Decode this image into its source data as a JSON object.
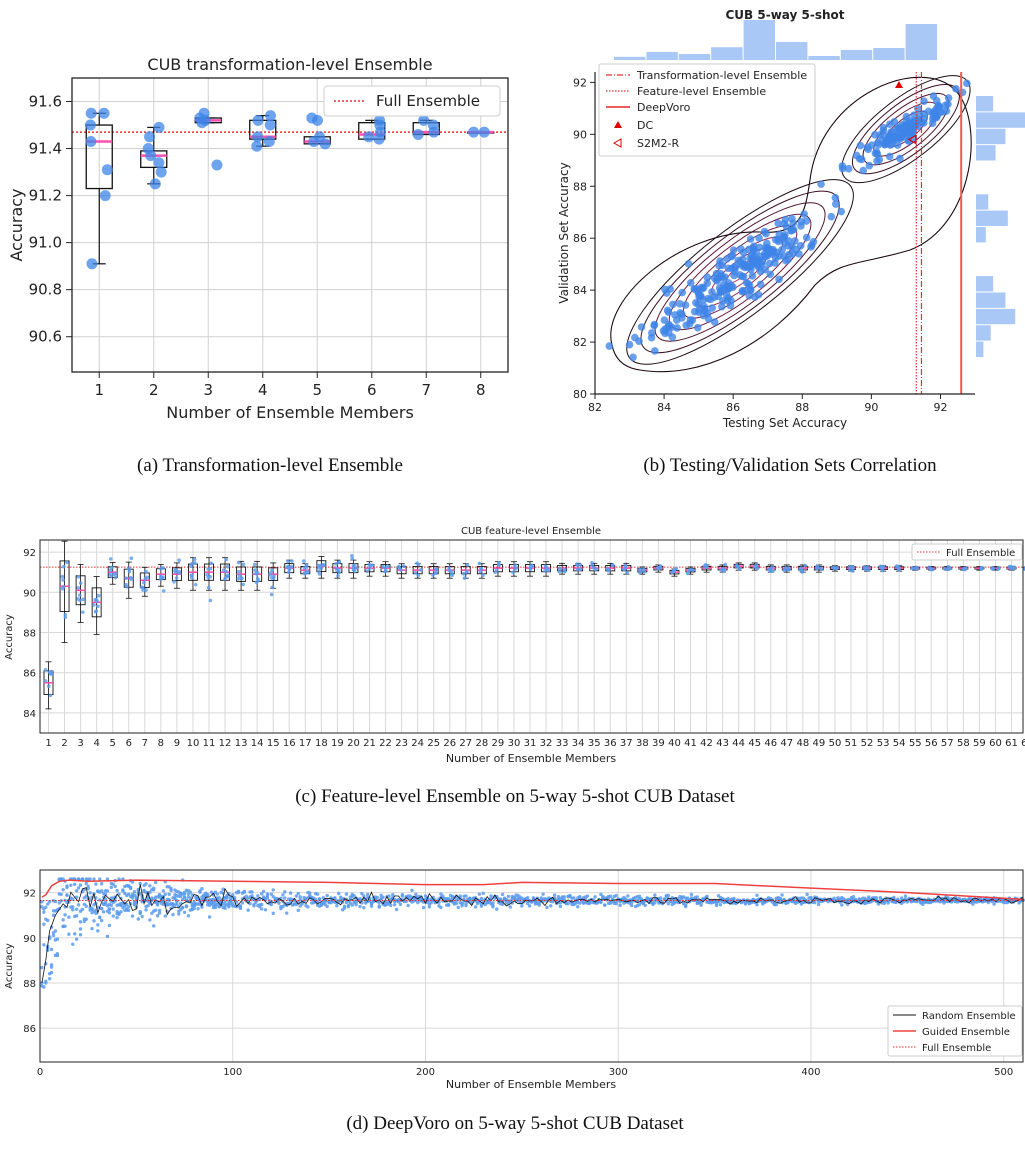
{
  "captions": {
    "a": "(a) Transformation-level Ensemble",
    "b": "(b) Testing/Validation Sets Correlation",
    "c": "(c) Feature-level Ensemble on 5-way 5-shot CUB Dataset",
    "d": "(d) DeepVoro on 5-way 5-shot CUB Dataset"
  },
  "chart_data": [
    {
      "id": "a",
      "type": "box",
      "title": "CUB transformation-level Ensemble",
      "xlabel": "Number of Ensemble Members",
      "ylabel": "Accuracy",
      "ylim": [
        90.45,
        91.7
      ],
      "yticks": [
        90.6,
        90.8,
        91.0,
        91.2,
        91.4,
        91.6
      ],
      "categories": [
        "1",
        "2",
        "3",
        "4",
        "5",
        "6",
        "7",
        "8"
      ],
      "grid": true,
      "legend": {
        "position": "top-right",
        "entries": [
          "Full Ensemble"
        ]
      },
      "full_ensemble": 91.47,
      "boxes": [
        {
          "min": 90.91,
          "q1": 91.23,
          "median": 91.43,
          "mean": 91.43,
          "q3": 91.5,
          "max": 91.55,
          "points": [
            90.91,
            91.2,
            91.31,
            91.43,
            91.5,
            91.55,
            91.55
          ]
        },
        {
          "min": 91.25,
          "q1": 91.32,
          "median": 91.37,
          "mean": 91.38,
          "q3": 91.39,
          "max": 91.49,
          "points": [
            91.25,
            91.3,
            91.34,
            91.37,
            91.4,
            91.45,
            91.49
          ]
        },
        {
          "min": 91.51,
          "q1": 91.51,
          "median": 91.52,
          "mean": 91.52,
          "q3": 91.53,
          "max": 91.53,
          "points": [
            91.33,
            91.51,
            91.52,
            91.53,
            91.55
          ]
        },
        {
          "min": 91.41,
          "q1": 91.44,
          "median": 91.45,
          "mean": 91.45,
          "q3": 91.52,
          "max": 91.54,
          "points": [
            91.41,
            91.43,
            91.45,
            91.5,
            91.52,
            91.54
          ]
        },
        {
          "min": 91.42,
          "q1": 91.42,
          "median": 91.43,
          "mean": 91.43,
          "q3": 91.45,
          "max": 91.45,
          "points": [
            91.42,
            91.43,
            91.45,
            91.52,
            91.53
          ]
        },
        {
          "min": 91.44,
          "q1": 91.44,
          "median": 91.46,
          "mean": 91.46,
          "q3": 91.51,
          "max": 91.52,
          "points": [
            91.44,
            91.45,
            91.47,
            91.5,
            91.52
          ]
        },
        {
          "min": 91.46,
          "q1": 91.46,
          "median": 91.47,
          "mean": 91.47,
          "q3": 91.51,
          "max": 91.52,
          "points": [
            91.46,
            91.47,
            91.5,
            91.52
          ]
        },
        {
          "min": 91.47,
          "q1": 91.47,
          "median": 91.47,
          "mean": 91.47,
          "q3": 91.47,
          "max": 91.47,
          "points": [
            91.47,
            91.47
          ]
        }
      ]
    },
    {
      "id": "b",
      "type": "scatter",
      "title": "CUB 5-way 5-shot",
      "xlabel": "Testing Set Accuracy",
      "ylabel": "Validation Set Accuracy",
      "xlim": [
        82,
        93
      ],
      "ylim": [
        80,
        92.4
      ],
      "xticks": [
        82,
        84,
        86,
        88,
        90,
        92
      ],
      "yticks": [
        80,
        82,
        84,
        86,
        88,
        90,
        92
      ],
      "legend": {
        "position": "top-left",
        "entries": [
          "Transformation-level Ensemble",
          "Feature-level Ensemble",
          "DeepVoro",
          "DC",
          "S2M2-R"
        ]
      },
      "vlines": {
        "transformation": 91.45,
        "feature": 91.3,
        "deepvoro": 92.6
      },
      "dc": [
        90.8,
        91.9
      ],
      "s2m2r": [
        91.2,
        89.8
      ],
      "clusters": [
        {
          "center": [
            86.2,
            84.7
          ],
          "count": 240,
          "spread": 1.6
        },
        {
          "center": [
            91.0,
            90.2
          ],
          "count": 130,
          "spread": 0.9
        }
      ],
      "hist_x": [
        0.08,
        0.2,
        0.15,
        0.32,
        1.0,
        0.45,
        0.1,
        0.25,
        0.3,
        0.9
      ],
      "hist_y": [
        0.35,
        1.0,
        0.6,
        0.4,
        0.0,
        0.0,
        0.25,
        0.65,
        0.2,
        0.0,
        0.0,
        0.35,
        0.6,
        0.8,
        0.3,
        0.15
      ]
    },
    {
      "id": "c",
      "type": "box",
      "title": "CUB feature-level Ensemble",
      "xlabel": "Number of Ensemble Members",
      "ylabel": "Accuracy",
      "ylim": [
        83,
        92.6
      ],
      "yticks": [
        84,
        86,
        88,
        90,
        92
      ],
      "n_categories": 64,
      "grid": true,
      "legend": {
        "position": "top-right",
        "entries": [
          "Full Ensemble"
        ]
      },
      "full_ensemble": 91.25,
      "medians": [
        85.5,
        90.3,
        90.1,
        89.5,
        91.0,
        90.7,
        90.6,
        90.9,
        90.9,
        91.0,
        91.0,
        91.0,
        90.9,
        90.9,
        90.9,
        91.2,
        91.1,
        91.3,
        91.2,
        91.2,
        91.2,
        91.2,
        91.1,
        91.1,
        91.1,
        91.1,
        91.1,
        91.1,
        91.2,
        91.2,
        91.2,
        91.2,
        91.2,
        91.2,
        91.2,
        91.2,
        91.2,
        91.1,
        91.2,
        91.0,
        91.1,
        91.2,
        91.2,
        91.3,
        91.3,
        91.2,
        91.2,
        91.2,
        91.2,
        91.2,
        91.2,
        91.2,
        91.2,
        91.2,
        91.2,
        91.2,
        91.2,
        91.2,
        91.2,
        91.2,
        91.2,
        91.2,
        91.2,
        91.2
      ],
      "halfwidth": [
        1.3,
        2.8,
        1.6,
        1.6,
        0.6,
        1.0,
        0.8,
        0.6,
        0.7,
        0.9,
        0.9,
        0.9,
        0.8,
        0.8,
        0.7,
        0.5,
        0.4,
        0.6,
        0.5,
        0.5,
        0.4,
        0.4,
        0.4,
        0.4,
        0.4,
        0.4,
        0.4,
        0.4,
        0.4,
        0.4,
        0.4,
        0.4,
        0.3,
        0.3,
        0.3,
        0.3,
        0.3,
        0.2,
        0.2,
        0.2,
        0.2,
        0.2,
        0.2,
        0.2,
        0.2,
        0.2,
        0.2,
        0.2,
        0.2,
        0.15,
        0.15,
        0.15,
        0.15,
        0.15,
        0.1,
        0.1,
        0.1,
        0.1,
        0.1,
        0.1,
        0.1,
        0.1,
        0.1,
        0.05
      ]
    },
    {
      "id": "d",
      "type": "line",
      "xlabel": "Number of Ensemble Members",
      "ylabel": "Accuracy",
      "xlim": [
        0,
        510
      ],
      "ylim": [
        84.5,
        93
      ],
      "xticks": [
        0,
        100,
        200,
        300,
        400,
        500
      ],
      "yticks": [
        86,
        88,
        90,
        92
      ],
      "grid": true,
      "legend": {
        "position": "bottom-right",
        "entries": [
          "Random Ensemble",
          "Guided Ensemble",
          "Full Ensemble"
        ]
      },
      "full_ensemble": 91.65,
      "guided_ensemble": {
        "x": [
          1,
          3,
          6,
          10,
          15,
          25,
          50,
          100,
          150,
          200,
          230,
          250,
          300,
          350,
          400,
          450,
          480,
          510
        ],
        "y": [
          91.8,
          91.9,
          92.3,
          92.5,
          92.55,
          92.5,
          92.55,
          92.5,
          92.45,
          92.35,
          92.35,
          92.45,
          92.4,
          92.4,
          92.2,
          92.0,
          91.85,
          91.7
        ]
      },
      "random_ensemble": {
        "start": [
          [
            1,
            88.0
          ],
          [
            3,
            89.0
          ],
          [
            5,
            90.3
          ],
          [
            8,
            91.0
          ],
          [
            12,
            91.5
          ]
        ],
        "mean": 91.65,
        "noise": 0.18
      },
      "scatter_spread": [
        [
          1,
          4.5
        ],
        [
          10,
          2.2
        ],
        [
          30,
          1.4
        ],
        [
          80,
          0.6
        ],
        [
          150,
          0.35
        ],
        [
          300,
          0.25
        ],
        [
          510,
          0.1
        ]
      ]
    }
  ]
}
